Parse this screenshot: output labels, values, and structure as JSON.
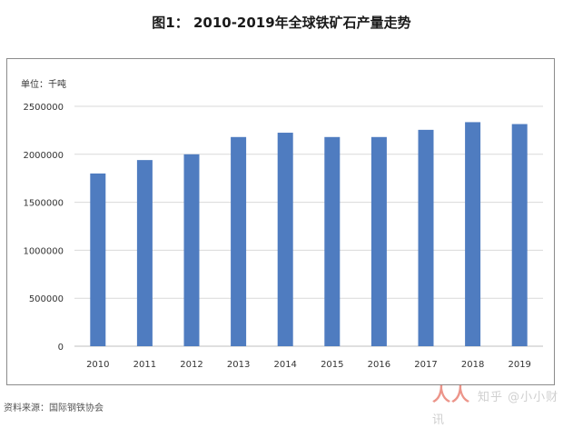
{
  "figure": {
    "title": "图1： 2010-2019年全球铁矿石产量走势",
    "source": "资料来源：国际钢铁协会",
    "watermark_logo": "人人都是产品经理",
    "watermark_text": "知乎 @小小财讯"
  },
  "colors": {
    "bar": "#4f7cc0",
    "grid": "#d9d9d9",
    "axis": "#bfbfbf",
    "frame": "#8c8c8c"
  },
  "chart_data": {
    "type": "bar",
    "title": "2010-2019年全球铁矿石产量走势",
    "unit_label": "单位：千吨",
    "xlabel": "",
    "ylabel": "单位：千吨",
    "categories": [
      "2010",
      "2011",
      "2012",
      "2013",
      "2014",
      "2015",
      "2016",
      "2017",
      "2018",
      "2019"
    ],
    "values": [
      1800000,
      1940000,
      2000000,
      2180000,
      2225000,
      2180000,
      2180000,
      2255000,
      2335000,
      2315000
    ],
    "ylim": [
      0,
      2500000
    ],
    "yticks": [
      0,
      500000,
      1000000,
      1500000,
      2000000,
      2500000
    ],
    "ytick_labels": [
      "0",
      "500000",
      "1000000",
      "1500000",
      "2000000",
      "2500000"
    ],
    "grid": true,
    "legend": "none"
  }
}
